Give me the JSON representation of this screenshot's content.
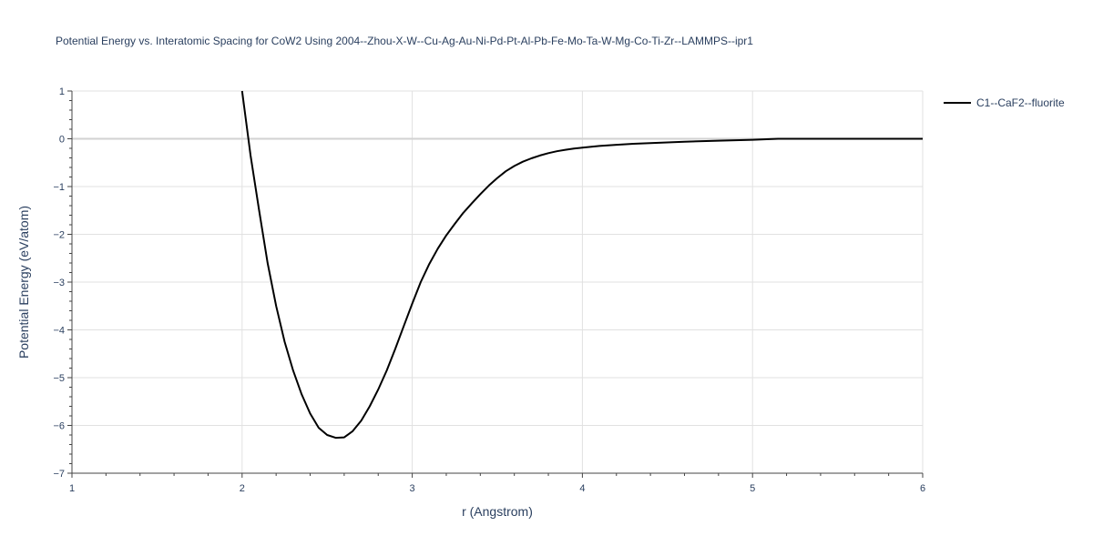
{
  "chart_data": {
    "type": "line",
    "title": "Potential Energy vs. Interatomic Spacing for CoW2 Using 2004--Zhou-X-W--Cu-Ag-Au-Ni-Pd-Pt-Al-Pb-Fe-Mo-Ta-W-Mg-Co-Ti-Zr--LAMMPS--ipr1",
    "xlabel": "r (Angstrom)",
    "ylabel": "Potential Energy (eV/atom)",
    "xlim": [
      1,
      6
    ],
    "ylim": [
      -7,
      1
    ],
    "xticks": [
      1,
      2,
      3,
      4,
      5,
      6
    ],
    "yticks": [
      1,
      0,
      -1,
      -2,
      -3,
      -4,
      -5,
      -6,
      -7
    ],
    "xtick_labels": [
      "1",
      "2",
      "3",
      "4",
      "5",
      "6"
    ],
    "ytick_labels": [
      "1",
      "0",
      "−1",
      "−2",
      "−3",
      "−4",
      "−5",
      "−6",
      "−7"
    ],
    "grid": true,
    "legend_position": "top-right",
    "series": [
      {
        "name": "C1--CaF2--fluorite",
        "color": "#000000",
        "x": [
          2.0,
          2.05,
          2.1,
          2.15,
          2.2,
          2.25,
          2.3,
          2.35,
          2.4,
          2.45,
          2.5,
          2.55,
          2.6,
          2.65,
          2.7,
          2.75,
          2.8,
          2.85,
          2.9,
          2.95,
          3.0,
          3.05,
          3.1,
          3.15,
          3.2,
          3.25,
          3.3,
          3.35,
          3.4,
          3.45,
          3.5,
          3.55,
          3.6,
          3.65,
          3.7,
          3.75,
          3.8,
          3.85,
          3.9,
          3.95,
          4.0,
          4.1,
          4.2,
          4.3,
          4.4,
          4.6,
          4.8,
          5.0,
          5.15,
          5.5,
          6.0
        ],
        "y": [
          1.0,
          -0.35,
          -1.5,
          -2.6,
          -3.5,
          -4.25,
          -4.85,
          -5.35,
          -5.75,
          -6.05,
          -6.2,
          -6.26,
          -6.25,
          -6.12,
          -5.9,
          -5.6,
          -5.25,
          -4.85,
          -4.4,
          -3.92,
          -3.45,
          -3.0,
          -2.62,
          -2.3,
          -2.02,
          -1.78,
          -1.55,
          -1.35,
          -1.16,
          -0.98,
          -0.82,
          -0.68,
          -0.57,
          -0.48,
          -0.41,
          -0.35,
          -0.3,
          -0.26,
          -0.23,
          -0.205,
          -0.185,
          -0.15,
          -0.125,
          -0.105,
          -0.09,
          -0.06,
          -0.04,
          -0.02,
          0.0,
          0.0,
          0.0
        ]
      }
    ]
  }
}
